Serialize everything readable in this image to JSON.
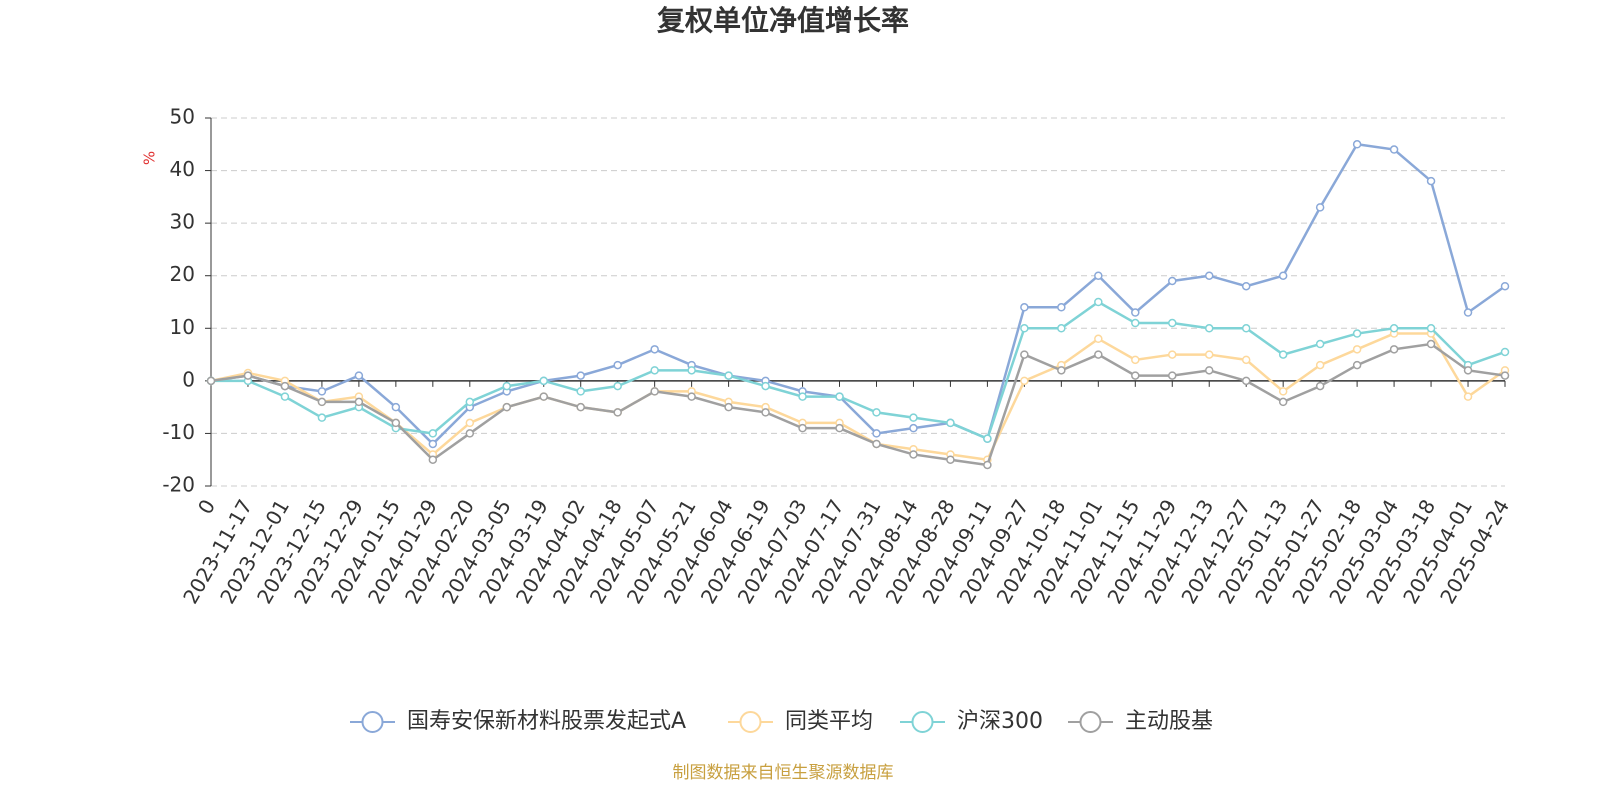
{
  "chart_data": {
    "type": "line",
    "title": "复权单位净值增长率",
    "y_unit": "%",
    "source": "制图数据来自恒生聚源数据库",
    "categories": [
      "0",
      "2023-11-17",
      "2023-12-01",
      "2023-12-15",
      "2023-12-29",
      "2024-01-15",
      "2024-01-29",
      "2024-02-20",
      "2024-03-05",
      "2024-03-19",
      "2024-04-02",
      "2024-04-18",
      "2024-05-07",
      "2024-05-21",
      "2024-06-04",
      "2024-06-19",
      "2024-07-03",
      "2024-07-17",
      "2024-07-31",
      "2024-08-14",
      "2024-08-28",
      "2024-09-11",
      "2024-09-27",
      "2024-10-18",
      "2024-11-01",
      "2024-11-15",
      "2024-11-29",
      "2024-12-13",
      "2024-12-27",
      "2025-01-13",
      "2025-01-27",
      "2025-02-18",
      "2025-03-04",
      "2025-03-18",
      "2025-04-01",
      "2025-04-24"
    ],
    "series": [
      {
        "name": "国寿安保新材料股票发起式A",
        "color": "#8aa8d8",
        "values": [
          0,
          1,
          -1,
          -2,
          1,
          -5,
          -12,
          -5,
          -2,
          0,
          1,
          3,
          6,
          3,
          1,
          0,
          -2,
          -3,
          -10,
          -9,
          -8,
          -11,
          14,
          14,
          20,
          13,
          19,
          20,
          18,
          20,
          33,
          45,
          44,
          38,
          13,
          18
        ]
      },
      {
        "name": "同类平均",
        "color": "#fdd89b",
        "values": [
          0,
          1.5,
          0,
          -4,
          -3,
          -8,
          -14,
          -8,
          -5,
          -3,
          -5,
          -6,
          -2,
          -2,
          -4,
          -5,
          -8,
          -8,
          -12,
          -13,
          -14,
          -15,
          0,
          3,
          8,
          4,
          5,
          5,
          4,
          -2,
          3,
          6,
          9,
          9,
          -3,
          2
        ]
      },
      {
        "name": "沪深300",
        "color": "#7fd3d6",
        "values": [
          0,
          0,
          -3,
          -7,
          -5,
          -9,
          -10,
          -4,
          -1,
          0,
          -2,
          -1,
          2,
          2,
          1,
          -1,
          -3,
          -3,
          -6,
          -7,
          -8,
          -11,
          10,
          10,
          15,
          11,
          11,
          10,
          10,
          5,
          7,
          9,
          10,
          10,
          3,
          5.5
        ]
      },
      {
        "name": "主动股基",
        "color": "#a0a0a0",
        "values": [
          0,
          1,
          -1,
          -4,
          -4,
          -8,
          -15,
          -10,
          -5,
          -3,
          -5,
          -6,
          -2,
          -3,
          -5,
          -6,
          -9,
          -9,
          -12,
          -14,
          -15,
          -16,
          5,
          2,
          5,
          1,
          1,
          2,
          0,
          -4,
          -1,
          3,
          6,
          7,
          2,
          1
        ]
      }
    ],
    "ylim": [
      -20,
      50
    ],
    "yticks": [
      -20,
      -10,
      0,
      10,
      20,
      30,
      40,
      50
    ],
    "grid": true
  }
}
